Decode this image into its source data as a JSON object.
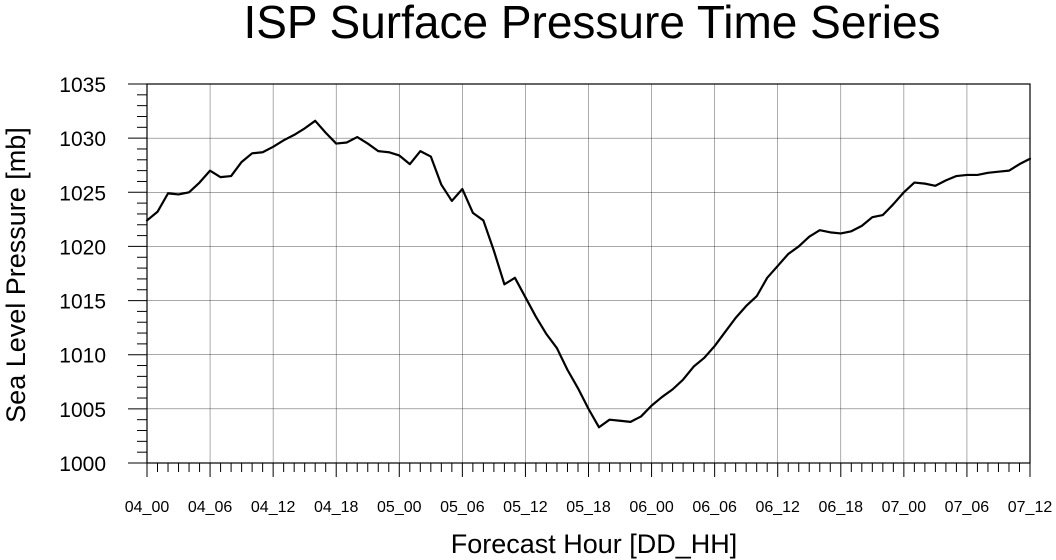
{
  "chart_data": {
    "type": "line",
    "title": "ISP Surface Pressure Time Series",
    "xlabel": "Forecast Hour [DD_HH]",
    "ylabel": "Sea Level Pressure [mb]",
    "ylim": [
      1000,
      1035
    ],
    "xlim": [
      0,
      84
    ],
    "grid": true,
    "legend": "none",
    "x_tick_values": [
      0,
      6,
      12,
      18,
      24,
      30,
      36,
      42,
      48,
      54,
      60,
      66,
      72,
      78,
      84
    ],
    "x_tick_labels": [
      "04_00",
      "04_06",
      "04_12",
      "04_18",
      "05_00",
      "05_06",
      "05_12",
      "05_18",
      "06_00",
      "06_06",
      "06_12",
      "06_18",
      "07_00",
      "07_06",
      "07_12"
    ],
    "y_tick_values": [
      1000,
      1005,
      1010,
      1015,
      1020,
      1025,
      1030,
      1035
    ],
    "y_tick_labels": [
      "1000",
      "1005",
      "1010",
      "1015",
      "1020",
      "1025",
      "1030",
      "1035"
    ],
    "series": [
      {
        "x": [
          0,
          1,
          2,
          3,
          4,
          5,
          6,
          7,
          8,
          9,
          10,
          11,
          12,
          13,
          14,
          15,
          16,
          17,
          18,
          19,
          20,
          21,
          22,
          23,
          24,
          25,
          26,
          27,
          28,
          29,
          30,
          31,
          32,
          33,
          34,
          35,
          36,
          37,
          38,
          39,
          40,
          41,
          42,
          43,
          44,
          45,
          46,
          47,
          48,
          49,
          50,
          51,
          52,
          53,
          54,
          55,
          56,
          57,
          58,
          59,
          60,
          61,
          62,
          63,
          64,
          65,
          66,
          67,
          68,
          69,
          70,
          71,
          72,
          73,
          74,
          75,
          76,
          77,
          78,
          79,
          80,
          81,
          82,
          83,
          84
        ],
        "y": [
          1022.4,
          1023.2,
          1024.9,
          1024.8,
          1025.0,
          1025.9,
          1027.0,
          1026.4,
          1026.5,
          1027.8,
          1028.6,
          1028.7,
          1029.2,
          1029.8,
          1030.3,
          1030.9,
          1031.6,
          1030.5,
          1029.5,
          1029.6,
          1030.1,
          1029.5,
          1028.8,
          1028.7,
          1028.4,
          1027.6,
          1028.8,
          1028.3,
          1025.7,
          1024.2,
          1025.3,
          1023.1,
          1022.4,
          1019.6,
          1016.5,
          1017.1,
          1015.3,
          1013.5,
          1011.9,
          1010.6,
          1008.6,
          1006.9,
          1005.0,
          1003.3,
          1004.0,
          1003.9,
          1003.8,
          1004.3,
          1005.3,
          1006.1,
          1006.8,
          1007.7,
          1008.9,
          1009.7,
          1010.8,
          1012.1,
          1013.4,
          1014.5,
          1015.4,
          1017.1,
          1018.2,
          1019.3,
          1020.0,
          1020.9,
          1021.5,
          1021.3,
          1021.2,
          1021.4,
          1021.9,
          1022.7,
          1022.9,
          1023.9,
          1025.0,
          1025.9,
          1025.8,
          1025.6,
          1026.1,
          1026.5,
          1026.6,
          1026.6,
          1026.8,
          1026.9,
          1027.0,
          1027.6,
          1028.1
        ]
      }
    ]
  }
}
